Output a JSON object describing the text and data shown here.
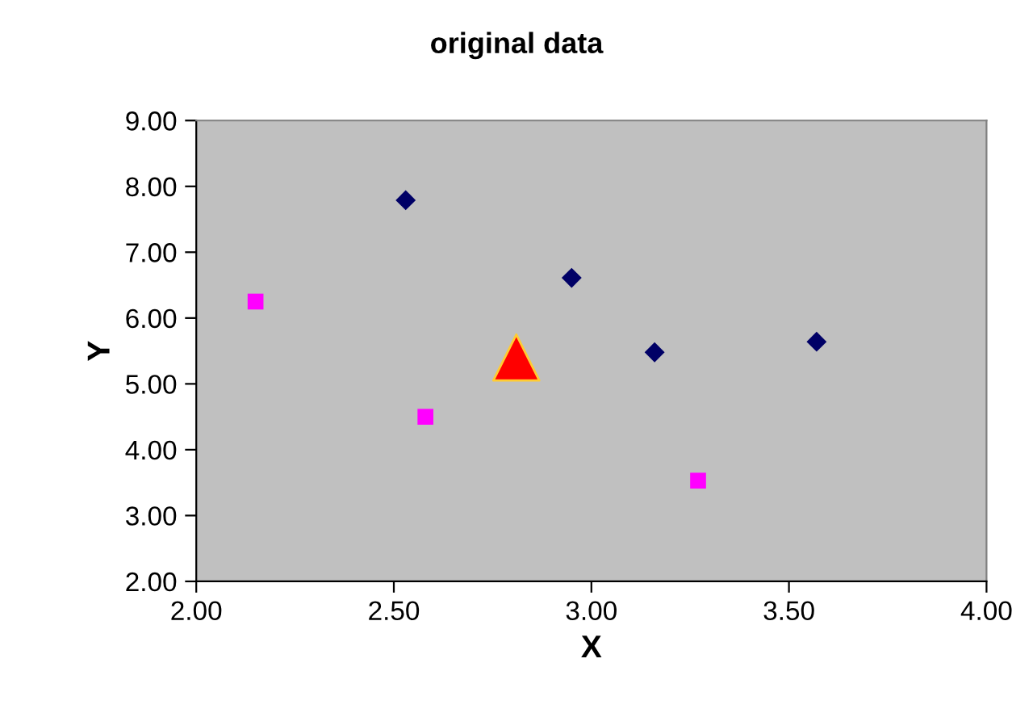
{
  "chart_data": {
    "type": "scatter",
    "title": "original data",
    "xlabel": "X",
    "ylabel": "Y",
    "xlim": [
      2,
      4
    ],
    "ylim": [
      2,
      9
    ],
    "xticks": [
      {
        "value": 2,
        "label": "2.00"
      },
      {
        "value": 2.5,
        "label": "2.50"
      },
      {
        "value": 3,
        "label": "3.00"
      },
      {
        "value": 3.5,
        "label": "3.50"
      },
      {
        "value": 4,
        "label": "4.00"
      }
    ],
    "yticks": [
      {
        "value": 2,
        "label": "2.00"
      },
      {
        "value": 3,
        "label": "3.00"
      },
      {
        "value": 4,
        "label": "4.00"
      },
      {
        "value": 5,
        "label": "5.00"
      },
      {
        "value": 6,
        "label": "6.00"
      },
      {
        "value": 7,
        "label": "7.00"
      },
      {
        "value": 8,
        "label": "8.00"
      },
      {
        "value": 9,
        "label": "9.00"
      }
    ],
    "grid": false,
    "legend": false,
    "series": [
      {
        "color": "#000066",
        "marker": "diamond",
        "x": [
          2.53,
          2.95,
          3.16,
          3.57
        ],
        "values": [
          7.79,
          6.61,
          5.48,
          5.64
        ]
      },
      {
        "color": "#ff00ff",
        "marker": "square",
        "x": [
          2.15,
          2.58,
          3.27
        ],
        "values": [
          6.25,
          4.5,
          3.53
        ]
      },
      {
        "color": "#ff0000",
        "marker": "triangle",
        "x": [
          2.81
        ],
        "values": [
          5.4
        ]
      }
    ]
  }
}
